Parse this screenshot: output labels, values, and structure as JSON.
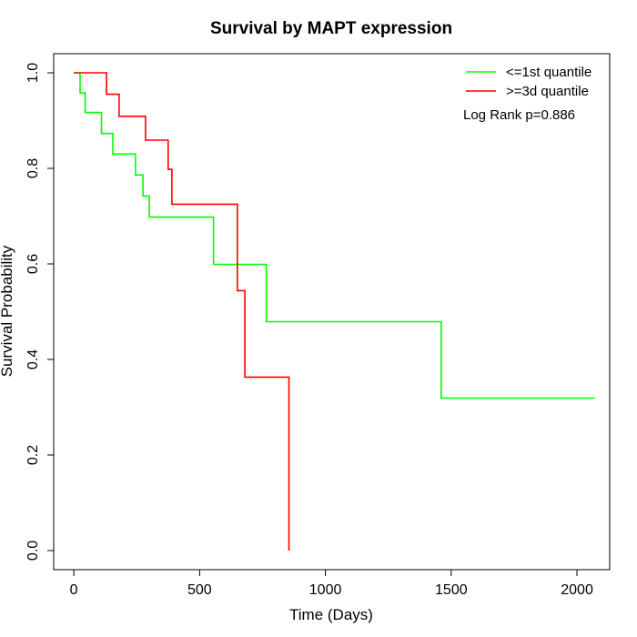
{
  "chart_data": {
    "type": "line",
    "title": "Survival by MAPT expression",
    "xlabel": "Time (Days)",
    "ylabel": "Survival Probability",
    "xlim": [
      -80,
      2130
    ],
    "ylim": [
      -0.04,
      1.04
    ],
    "x_ticks": [
      0,
      500,
      1000,
      1500,
      2000
    ],
    "x_tick_labels": [
      "0",
      "500",
      "1000",
      "1500",
      "2000"
    ],
    "y_ticks": [
      0.0,
      0.2,
      0.4,
      0.6,
      0.8,
      1.0
    ],
    "y_tick_labels": [
      "0.0",
      "0.2",
      "0.4",
      "0.6",
      "0.8",
      "1.0"
    ],
    "grid": false,
    "legend_position": "top-right",
    "series": [
      {
        "name": "<=1st quantile",
        "color": "#00ff00",
        "x": [
          0,
          25,
          25,
          45,
          45,
          110,
          110,
          155,
          155,
          245,
          245,
          275,
          275,
          300,
          300,
          555,
          555,
          765,
          765,
          1460,
          1460,
          2070
        ],
        "y": [
          1.0,
          1.0,
          0.958,
          0.958,
          0.917,
          0.917,
          0.873,
          0.873,
          0.83,
          0.83,
          0.786,
          0.786,
          0.742,
          0.742,
          0.698,
          0.698,
          0.599,
          0.599,
          0.479,
          0.479,
          0.319,
          0.319
        ]
      },
      {
        "name": ">=3d quantile",
        "color": "#ff0000",
        "x": [
          0,
          130,
          130,
          180,
          180,
          285,
          285,
          375,
          375,
          390,
          390,
          650,
          650,
          680,
          680,
          855,
          855
        ],
        "y": [
          1.0,
          1.0,
          0.955,
          0.955,
          0.909,
          0.909,
          0.859,
          0.859,
          0.798,
          0.798,
          0.725,
          0.725,
          0.544,
          0.544,
          0.363,
          0.363,
          0.0
        ]
      }
    ],
    "annotation": "Log Rank p=0.886"
  }
}
